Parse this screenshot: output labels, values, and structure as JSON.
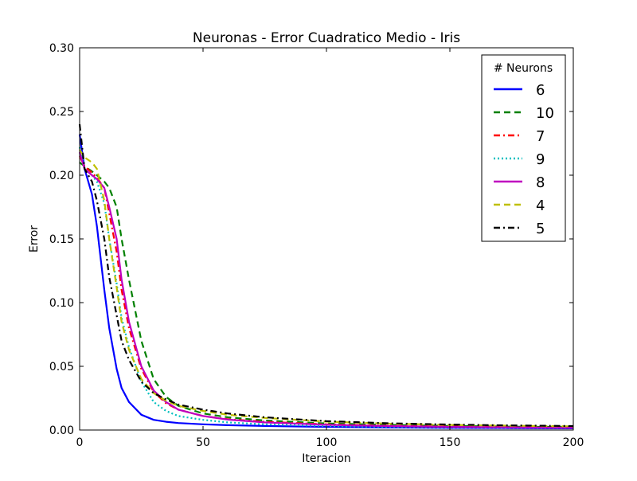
{
  "chart_data": {
    "type": "line",
    "title": "Neuronas - Error Cuadratico Medio - Iris",
    "xlabel": "Iteracion",
    "ylabel": "Error",
    "xlim": [
      0,
      200
    ],
    "ylim": [
      0,
      0.3
    ],
    "xticks": [
      0,
      50,
      100,
      150,
      200
    ],
    "yticks": [
      0.0,
      0.05,
      0.1,
      0.15,
      0.2,
      0.25,
      0.3
    ],
    "xtick_labels": [
      "0",
      "50",
      "100",
      "150",
      "200"
    ],
    "ytick_labels": [
      "0.00",
      "0.05",
      "0.10",
      "0.15",
      "0.20",
      "0.25",
      "0.30"
    ],
    "grid": false,
    "legend": {
      "title": "# Neurons",
      "placement": "top-right"
    },
    "x": [
      0,
      2,
      5,
      7,
      10,
      12,
      15,
      17,
      20,
      25,
      30,
      35,
      40,
      50,
      60,
      75,
      100,
      125,
      150,
      175,
      200
    ],
    "series": [
      {
        "name": "6",
        "color": "#0000ff",
        "style": "solid",
        "values": [
          0.232,
          0.205,
          0.185,
          0.16,
          0.11,
          0.08,
          0.048,
          0.033,
          0.022,
          0.012,
          0.008,
          0.0065,
          0.0055,
          0.0045,
          0.0038,
          0.0032,
          0.0025,
          0.002,
          0.0017,
          0.0015,
          0.0013
        ]
      },
      {
        "name": "10",
        "color": "#008000",
        "style": "dashed",
        "values": [
          0.21,
          0.207,
          0.203,
          0.2,
          0.195,
          0.19,
          0.175,
          0.15,
          0.118,
          0.07,
          0.04,
          0.026,
          0.019,
          0.013,
          0.01,
          0.0075,
          0.0052,
          0.004,
          0.0032,
          0.0027,
          0.0023
        ]
      },
      {
        "name": "7",
        "color": "#ff0000",
        "style": "dashdot",
        "values": [
          0.215,
          0.207,
          0.202,
          0.198,
          0.19,
          0.17,
          0.14,
          0.11,
          0.08,
          0.048,
          0.03,
          0.021,
          0.016,
          0.011,
          0.0085,
          0.0065,
          0.0045,
          0.0034,
          0.0028,
          0.0024,
          0.002
        ]
      },
      {
        "name": "9",
        "color": "#00bfbf",
        "style": "dotted",
        "values": [
          0.222,
          0.205,
          0.2,
          0.195,
          0.178,
          0.15,
          0.115,
          0.088,
          0.065,
          0.038,
          0.022,
          0.015,
          0.011,
          0.008,
          0.006,
          0.0045,
          0.0032,
          0.0025,
          0.0021,
          0.0018,
          0.0016
        ]
      },
      {
        "name": "8",
        "color": "#bf00bf",
        "style": "solid",
        "values": [
          0.218,
          0.205,
          0.2,
          0.197,
          0.19,
          0.175,
          0.15,
          0.118,
          0.085,
          0.05,
          0.031,
          0.022,
          0.016,
          0.011,
          0.0082,
          0.006,
          0.0041,
          0.0031,
          0.0025,
          0.0021,
          0.0018
        ]
      },
      {
        "name": "4",
        "color": "#bfbf00",
        "style": "dashed",
        "values": [
          0.22,
          0.214,
          0.21,
          0.205,
          0.18,
          0.15,
          0.112,
          0.085,
          0.063,
          0.04,
          0.029,
          0.023,
          0.019,
          0.015,
          0.012,
          0.0095,
          0.0066,
          0.005,
          0.004,
          0.0034,
          0.0029
        ]
      },
      {
        "name": "5",
        "color": "#000000",
        "style": "dashdot",
        "values": [
          0.24,
          0.205,
          0.195,
          0.18,
          0.15,
          0.12,
          0.09,
          0.07,
          0.055,
          0.038,
          0.029,
          0.024,
          0.02,
          0.016,
          0.013,
          0.01,
          0.007,
          0.0053,
          0.0043,
          0.0036,
          0.0031
        ]
      }
    ]
  }
}
